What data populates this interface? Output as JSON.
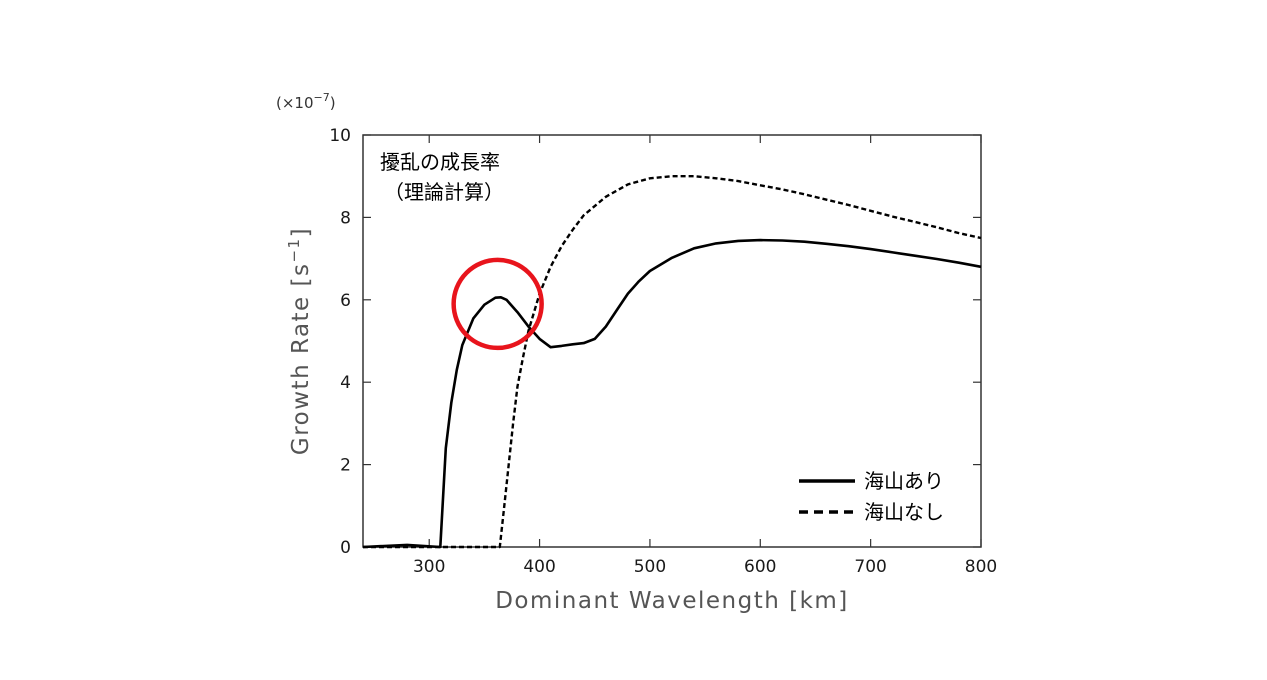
{
  "chart_data": {
    "type": "line",
    "annotation_title": "擾乱の成長率",
    "annotation_subtitle": "（理論計算）",
    "xlabel": "Dominant Wavelength [km]",
    "ylabel": "Growth Rate [s",
    "ylabel_exp": "−1",
    "ylabel_close": "]",
    "y_multiplier_prefix": "(×10",
    "y_multiplier_exp": "−7",
    "y_multiplier_close": ")",
    "xlim": [
      240,
      800
    ],
    "ylim": [
      0,
      10
    ],
    "x_ticks": [
      300,
      400,
      500,
      600,
      700,
      800
    ],
    "y_ticks": [
      0,
      2,
      4,
      6,
      8,
      10
    ],
    "grid": false,
    "legend_position": "bottom-right",
    "highlight": {
      "x": 362,
      "y": 5.9,
      "color": "#e8141c"
    },
    "series": [
      {
        "name": "海山あり",
        "style": "solid",
        "color": "#000000",
        "x": [
          240,
          280,
          310,
          315,
          320,
          325,
          330,
          340,
          350,
          360,
          365,
          370,
          380,
          390,
          400,
          410,
          420,
          430,
          440,
          450,
          460,
          470,
          480,
          490,
          500,
          520,
          540,
          560,
          580,
          600,
          620,
          640,
          660,
          680,
          700,
          720,
          740,
          760,
          780,
          800
        ],
        "y": [
          0.0,
          0.05,
          0.0,
          2.4,
          3.5,
          4.3,
          4.9,
          5.55,
          5.88,
          6.05,
          6.06,
          6.0,
          5.7,
          5.35,
          5.05,
          4.85,
          4.88,
          4.92,
          4.95,
          5.05,
          5.35,
          5.75,
          6.15,
          6.45,
          6.7,
          7.02,
          7.25,
          7.37,
          7.43,
          7.45,
          7.44,
          7.41,
          7.36,
          7.3,
          7.23,
          7.15,
          7.07,
          6.99,
          6.9,
          6.8
        ]
      },
      {
        "name": "海山なし",
        "style": "dashed",
        "color": "#000000",
        "x": [
          240,
          300,
          364,
          368,
          372,
          376,
          380,
          385,
          390,
          400,
          410,
          420,
          430,
          440,
          460,
          480,
          500,
          520,
          540,
          560,
          580,
          600,
          620,
          640,
          660,
          680,
          700,
          720,
          740,
          760,
          780,
          800
        ],
        "y": [
          0.0,
          0.0,
          0.0,
          1.0,
          2.0,
          3.0,
          3.9,
          4.6,
          5.25,
          6.15,
          6.8,
          7.3,
          7.7,
          8.05,
          8.5,
          8.8,
          8.95,
          9.0,
          9.0,
          8.95,
          8.88,
          8.78,
          8.68,
          8.56,
          8.43,
          8.3,
          8.16,
          8.02,
          7.89,
          7.76,
          7.62,
          7.5
        ]
      }
    ]
  }
}
